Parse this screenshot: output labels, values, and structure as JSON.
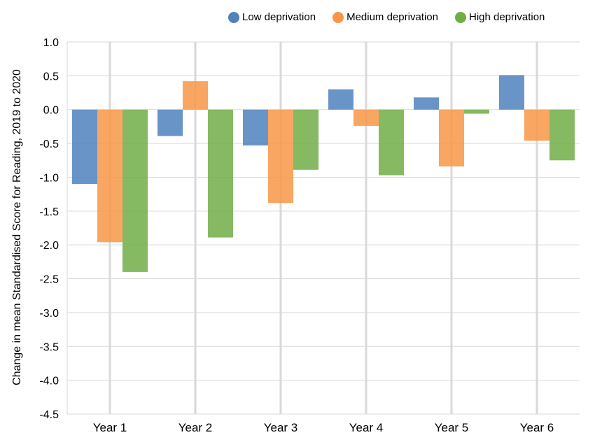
{
  "chart_data": {
    "type": "bar",
    "title": "",
    "xlabel": "",
    "ylabel": "Change in mean Standardised Score for Reading, 2019 to 2020",
    "categories": [
      "Year 1",
      "Year 2",
      "Year 3",
      "Year 4",
      "Year 5",
      "Year 6"
    ],
    "series": [
      {
        "name": "Low deprivation",
        "color": "#4f81bd",
        "values": [
          -1.1,
          -0.39,
          -0.53,
          0.3,
          0.18,
          0.51
        ]
      },
      {
        "name": "Medium deprivation",
        "color": "#f79646",
        "values": [
          -1.96,
          0.42,
          -1.38,
          -0.24,
          -0.84,
          -0.46
        ]
      },
      {
        "name": "High deprivation",
        "color": "#70ad47",
        "values": [
          -2.4,
          -1.89,
          -0.89,
          -0.97,
          -0.06,
          -0.75
        ]
      }
    ],
    "ylim": [
      -4.5,
      1.0
    ],
    "ytick_labels": [
      "1.0",
      "0.5",
      "0.0",
      "-0.5",
      "-1.0",
      "-1.5",
      "-2.0",
      "-2.5",
      "-3.0",
      "-3.5",
      "-4.0",
      "-4.5"
    ],
    "grid": true,
    "legend_position": "top"
  }
}
